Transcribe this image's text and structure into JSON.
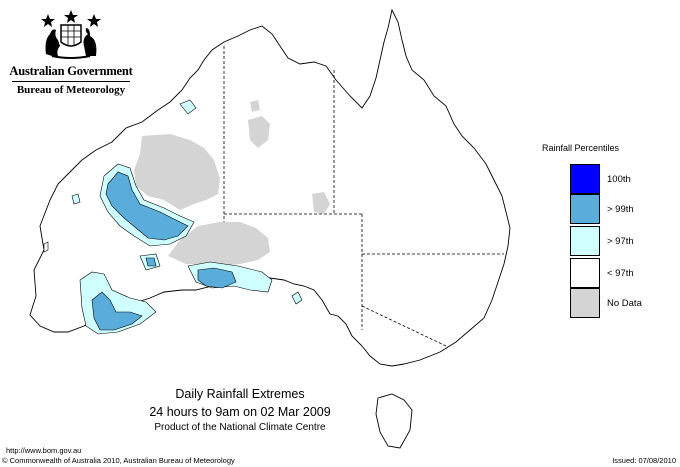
{
  "header": {
    "government": "Australian Government",
    "bureau": "Bureau of Meteorology"
  },
  "map": {
    "subject": "Australia daily rainfall percentiles",
    "colors": {
      "land": "#ffffff",
      "outline": "#000000",
      "p100": "#0000ff",
      "p99": "#5aaddb",
      "p97": "#cfffff",
      "nodata": "#d4d4d4"
    }
  },
  "legend": {
    "title": "Rainfall Percentiles",
    "items": [
      {
        "label": "100th",
        "color": "#0000ff"
      },
      {
        "label": "> 99th",
        "color": "#5aaddb"
      },
      {
        "label": "> 97th",
        "color": "#cfffff"
      },
      {
        "label": "< 97th",
        "color": "#ffffff"
      },
      {
        "label": "No Data",
        "color": "#d4d4d4"
      }
    ]
  },
  "title": {
    "line1": "Daily Rainfall Extremes",
    "line2": "24 hours to 9am on 02 Mar 2009",
    "line3": "Product of the National Climate Centre"
  },
  "footer": {
    "url": "http://www.bom.gov.au",
    "copyright": "© Commonwealth of Australia 2010, Australian Bureau of Meteorology",
    "issued": "Issued: 07/08/2010"
  }
}
